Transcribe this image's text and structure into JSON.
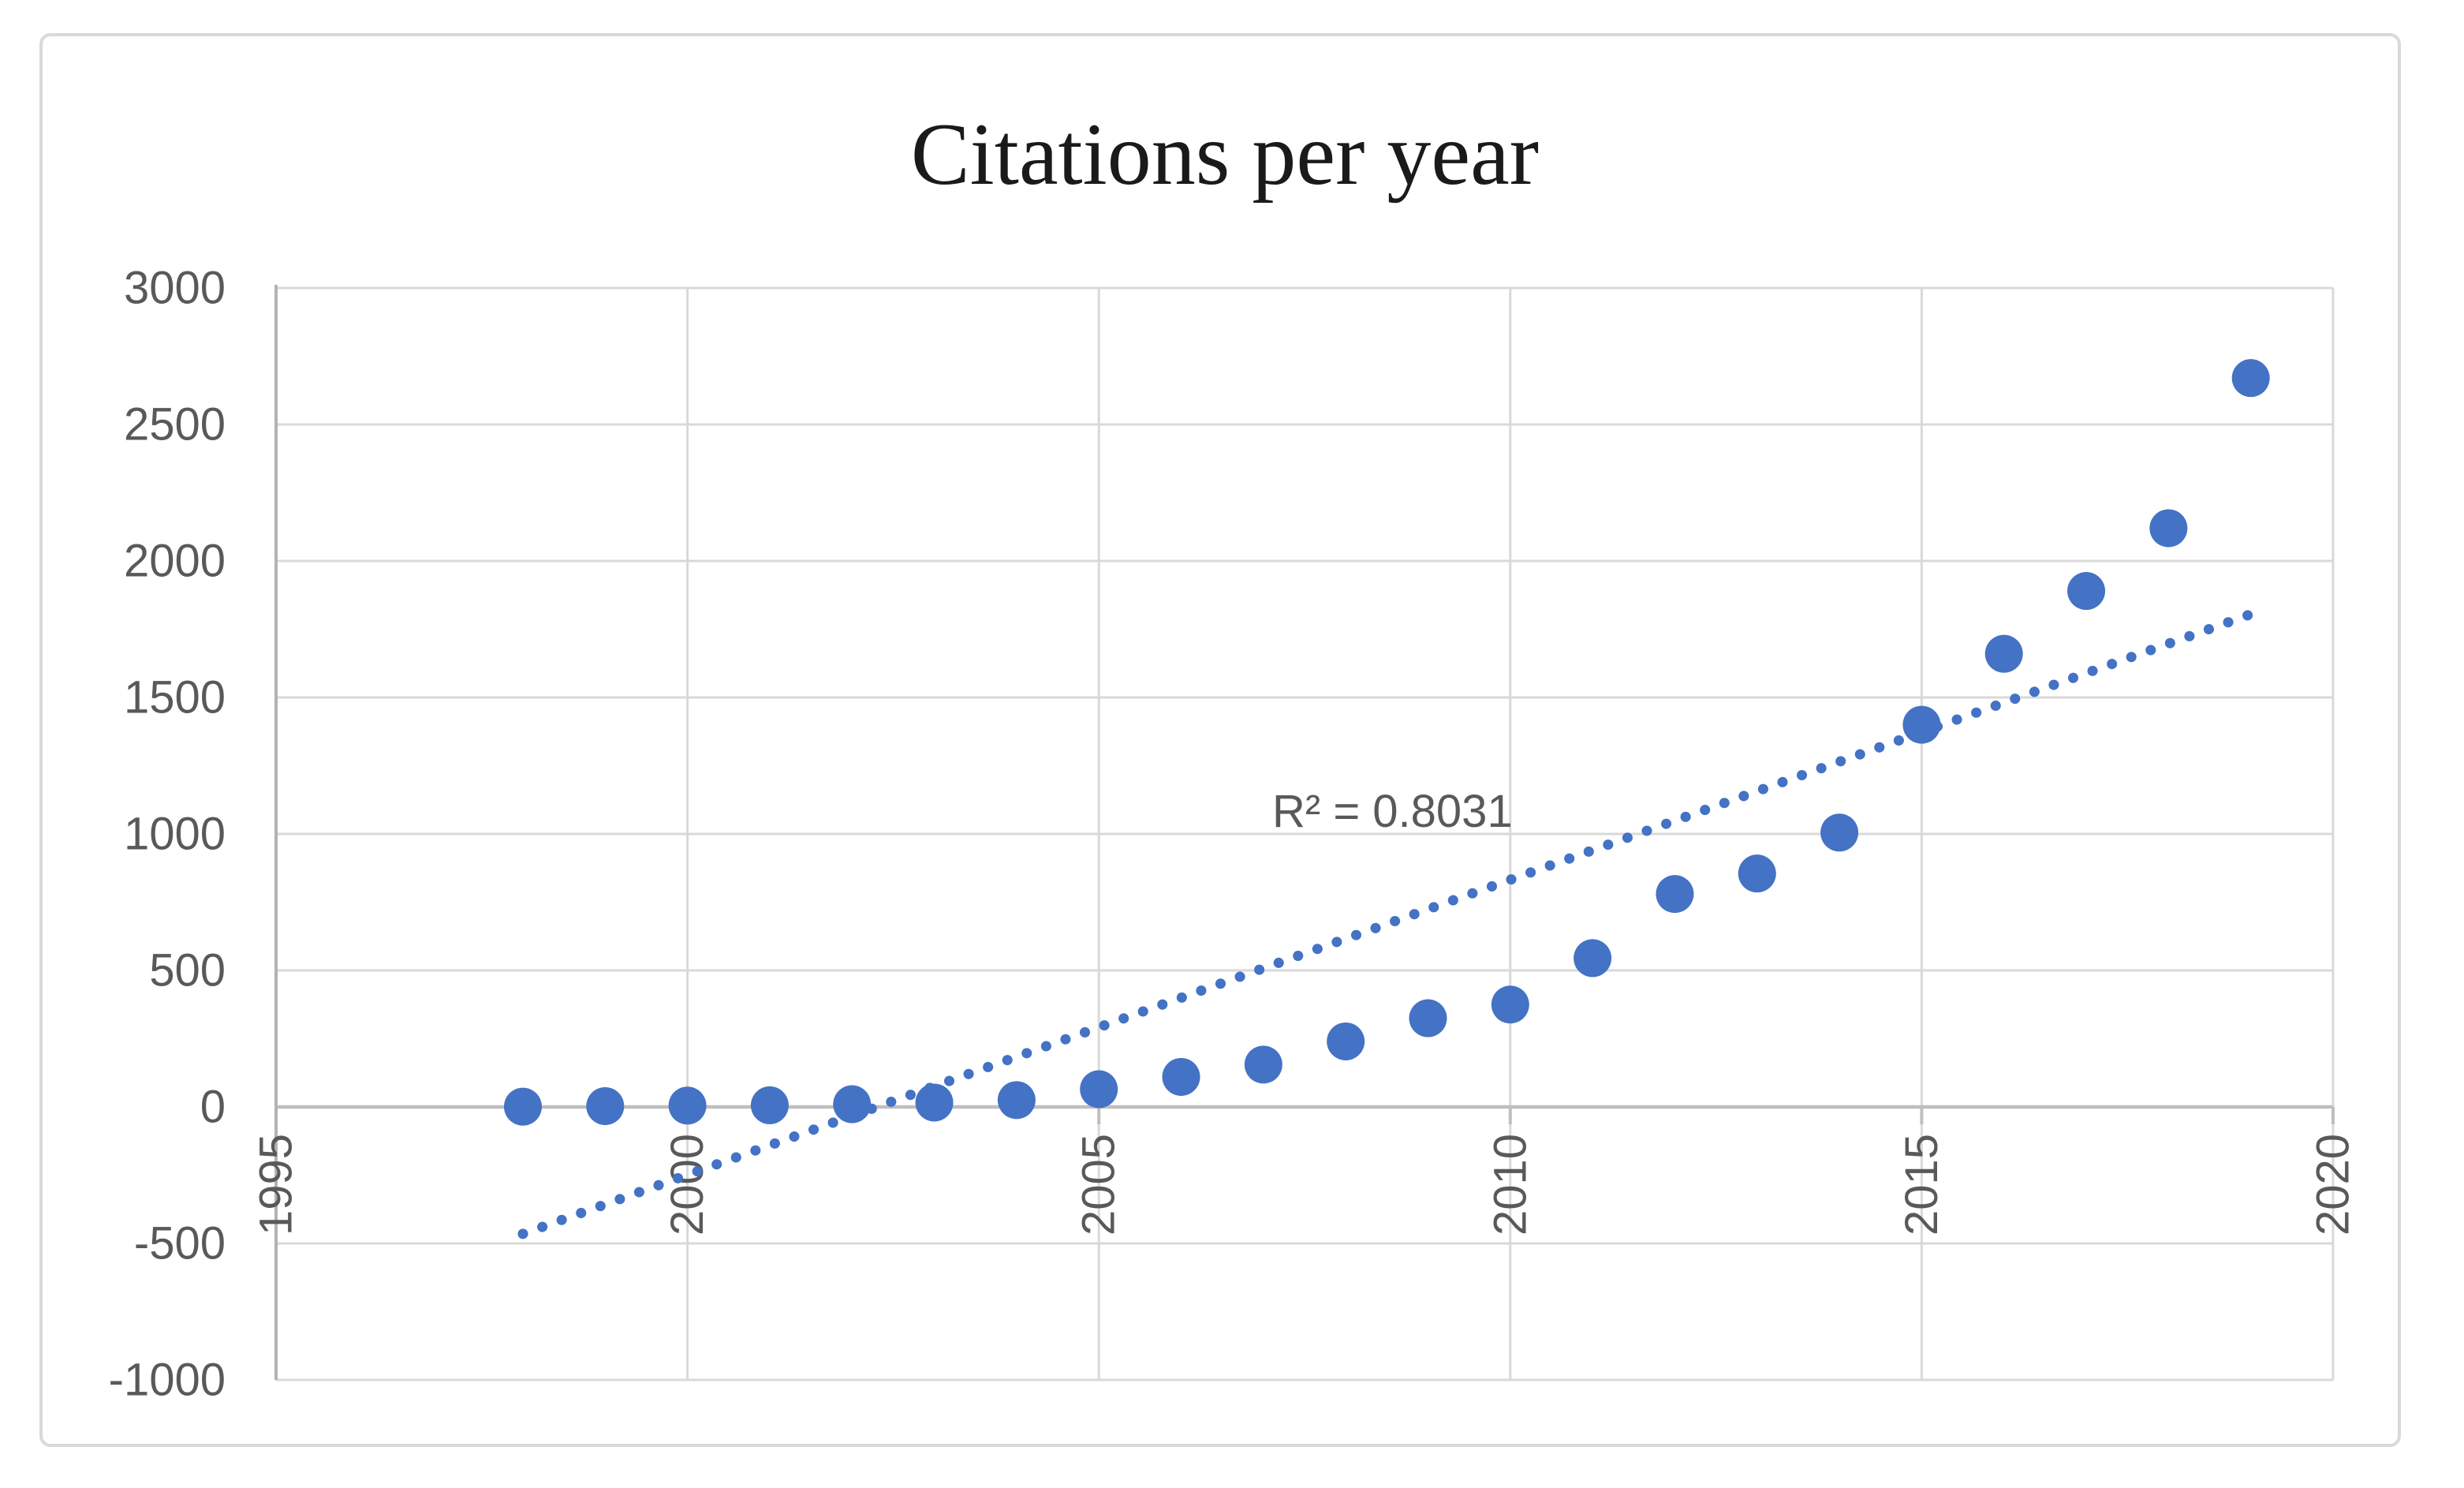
{
  "chart_data": {
    "type": "scatter",
    "title": "Citations per year",
    "xlabel": "",
    "ylabel": "",
    "legend": "none",
    "grid": true,
    "xlim": [
      1995,
      2020
    ],
    "ylim": [
      -1000,
      3000
    ],
    "x_ticks": [
      1995,
      2000,
      2005,
      2010,
      2015,
      2020
    ],
    "y_ticks": [
      3000,
      2500,
      2000,
      1500,
      1000,
      500,
      0,
      -500,
      -1000
    ],
    "x": [
      1998,
      1999,
      2000,
      2001,
      2002,
      2003,
      2004,
      2005,
      2006,
      2007,
      2008,
      2009,
      2010,
      2011,
      2012,
      2013,
      2014,
      2015,
      2016,
      2017,
      2018,
      2019
    ],
    "values": [
      1,
      3,
      5,
      6,
      10,
      16,
      25,
      65,
      110,
      155,
      240,
      325,
      375,
      545,
      780,
      855,
      1005,
      1400,
      1660,
      1890,
      2120,
      2670
    ],
    "trendline": {
      "type": "linear",
      "x_start": 1998,
      "y_start": -465,
      "x_end": 2019,
      "y_end": 1805,
      "r2": 0.8031,
      "label": "R² = 0.8031"
    },
    "colors": {
      "point": "#4472C4",
      "trendline": "#4472C4",
      "gridline": "#D9D9D9",
      "axis_line": "#BFBFBF",
      "plot_border": "#D9D9D9",
      "left_axis": "#B3B3B3",
      "tick_label": "#595959",
      "title": "#1A1A1A",
      "frame_border": "#D9D9D9",
      "background": "#FFFFFF"
    }
  }
}
